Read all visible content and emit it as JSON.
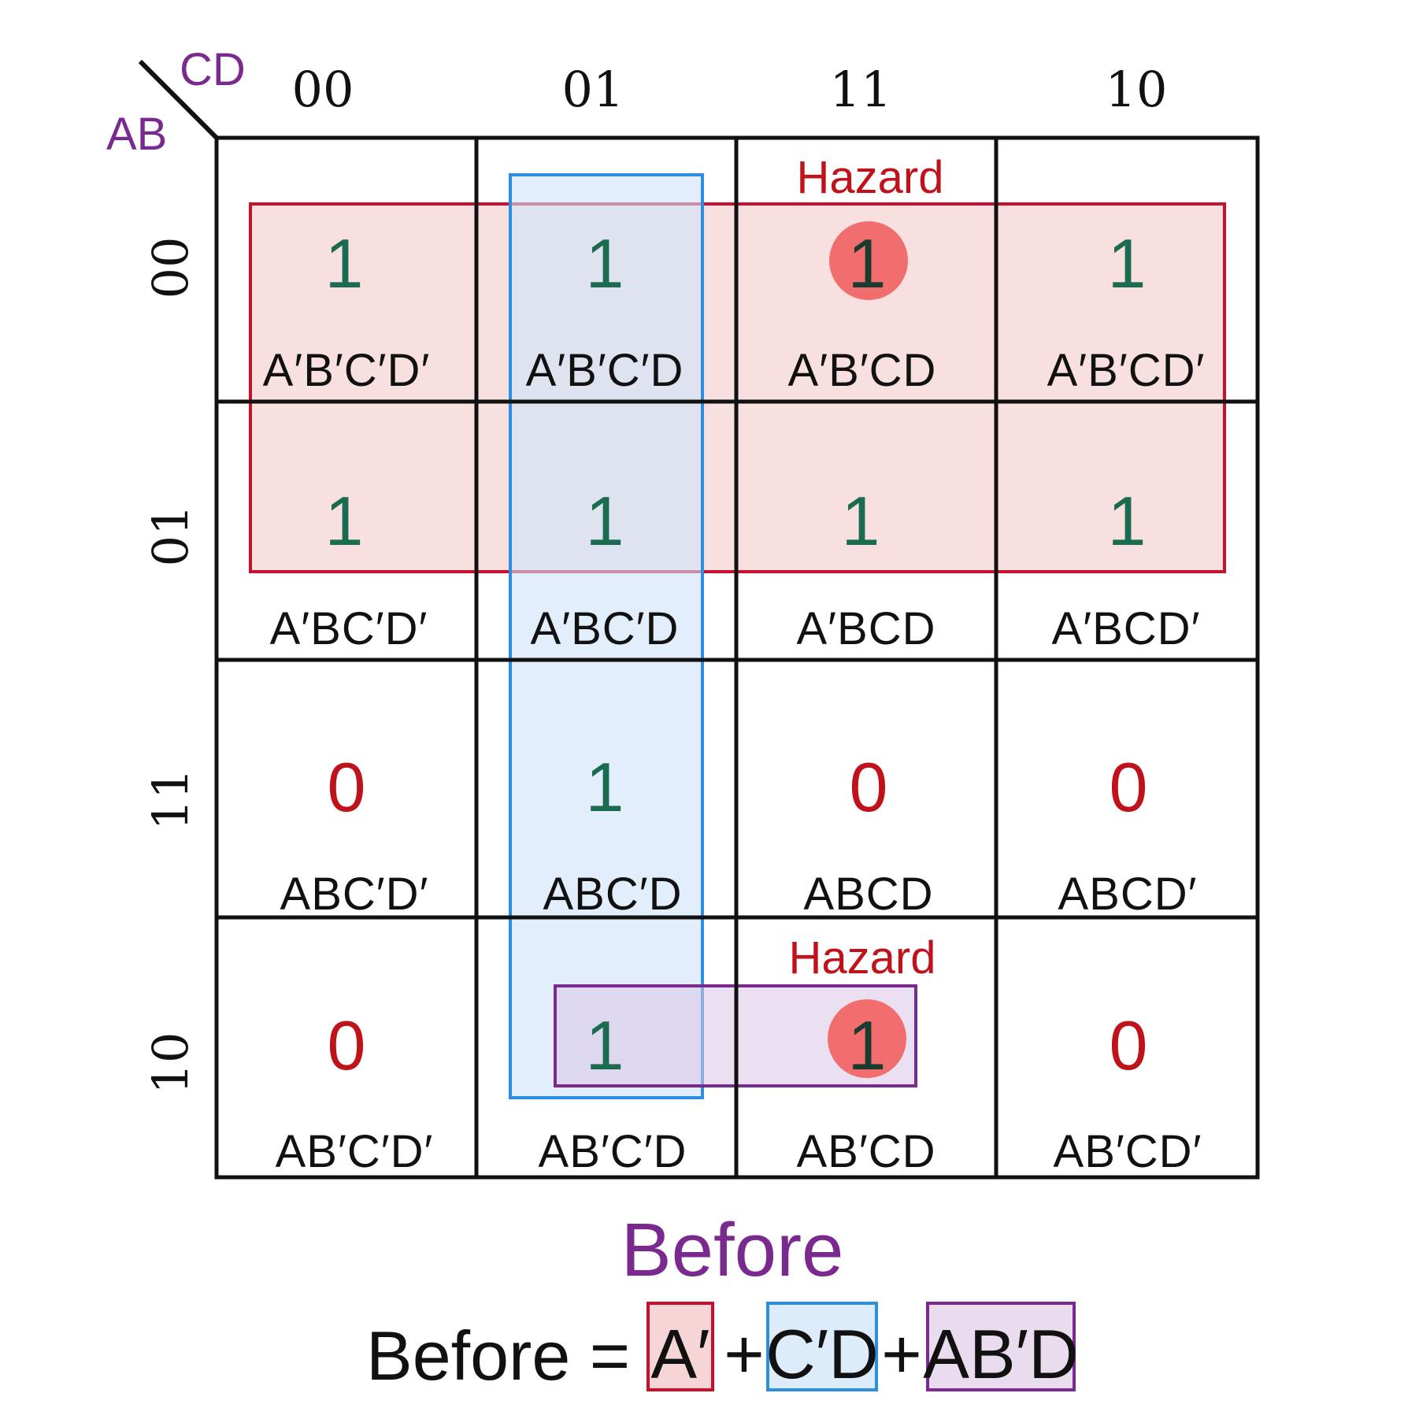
{
  "diagram": {
    "corner_labels": {
      "row_vars": "AB",
      "col_vars": "CD"
    },
    "column_headers": [
      "00",
      "01",
      "11",
      "10"
    ],
    "row_headers": [
      "00",
      "01",
      "11",
      "10"
    ],
    "cells": [
      [
        {
          "value": "1",
          "term": "A′B′C′D′"
        },
        {
          "value": "1",
          "term": "A′B′C′D"
        },
        {
          "value": "1",
          "term": "A′B′CD",
          "hazard": true
        },
        {
          "value": "1",
          "term": "A′B′CD′"
        }
      ],
      [
        {
          "value": "1",
          "term": "A′BC′D′"
        },
        {
          "value": "1",
          "term": "A′BC′D"
        },
        {
          "value": "1",
          "term": "A′BCD"
        },
        {
          "value": "1",
          "term": "A′BCD′"
        }
      ],
      [
        {
          "value": "0",
          "term": "ABC′D′"
        },
        {
          "value": "1",
          "term": "ABC′D"
        },
        {
          "value": "0",
          "term": "ABCD"
        },
        {
          "value": "0",
          "term": "ABCD′"
        }
      ],
      [
        {
          "value": "0",
          "term": "AB′C′D′"
        },
        {
          "value": "1",
          "term": "AB′C′D"
        },
        {
          "value": "1",
          "term": "AB′CD",
          "hazard": true
        },
        {
          "value": "0",
          "term": "AB′CD′"
        }
      ]
    ],
    "hazard_label": "Hazard",
    "caption": "Before",
    "expression": {
      "lhs": "Before =",
      "terms": [
        "A′",
        "C′D",
        "AB′D"
      ],
      "operator": "+"
    },
    "colors": {
      "one": "#1a6b4f",
      "zero": "#c0121b",
      "group_red": "#c8102e",
      "group_red_fill": "#f5d5d5",
      "group_blue": "#2b8ee0",
      "group_blue_fill": "#dcecfb",
      "group_purple": "#7a2a8f",
      "group_purple_fill": "#e9dcef",
      "hazard_dot": "#f26d6d",
      "label": "#7a2a8f"
    }
  }
}
